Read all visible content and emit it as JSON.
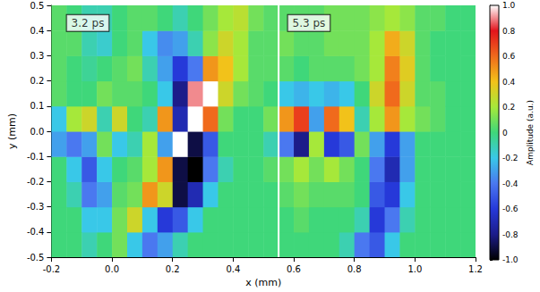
{
  "chart_data": {
    "type": "heatmap",
    "x_label": "x (mm)",
    "y_label": "y (mm)",
    "xlim": [
      -0.2,
      1.2
    ],
    "xticks": [
      -0.2,
      {
        "value": 0,
        "label": "0.0"
      },
      0.2,
      0.4,
      0.6,
      0.8,
      {
        "value": 1,
        "label": "1.0"
      },
      1.2
    ],
    "ylim": [
      -0.5,
      0.5
    ],
    "yticks": [
      -0.5,
      -0.4,
      -0.3,
      -0.2,
      -0.1,
      {
        "value": 0,
        "label": "0.0"
      },
      0.1,
      0.2,
      0.3,
      0.4,
      0.5
    ],
    "panel_boundary": 0.55,
    "annotations": [
      {
        "text": "3.2 ps",
        "x": -0.08,
        "y": 0.43
      },
      {
        "text": "5.3 ps",
        "x": 0.65,
        "y": 0.43
      }
    ],
    "x": [
      -0.175,
      -0.125,
      -0.075,
      -0.025,
      0.025,
      0.075,
      0.125,
      0.175,
      0.225,
      0.275,
      0.325,
      0.375,
      0.425,
      0.475,
      0.525,
      0.575,
      0.625,
      0.675,
      0.725,
      0.775,
      0.825,
      0.875,
      0.925,
      0.975,
      1.025,
      1.075,
      1.125,
      1.175
    ],
    "y": [
      -0.45,
      -0.35,
      -0.25,
      -0.15,
      -0.05,
      0.05,
      0.15,
      0.25,
      0.35,
      0.45
    ],
    "values": [
      [
        0.0,
        0.0,
        -0.1,
        0.0,
        0.1,
        -0.2,
        -0.4,
        -0.3,
        -0.1,
        0.0,
        0.0,
        0.0,
        0.0,
        0.0,
        0.0,
        0.0,
        0.0,
        0.0,
        0.0,
        -0.1,
        -0.4,
        -0.5,
        -0.2,
        0.0,
        0.0,
        0.0,
        0.0,
        0.0
      ],
      [
        0.0,
        0.0,
        -0.2,
        -0.2,
        0.1,
        0.3,
        -0.2,
        -0.6,
        -0.5,
        -0.2,
        0.0,
        0.0,
        0.0,
        0.0,
        0.0,
        0.0,
        0.05,
        0.0,
        0.0,
        0.0,
        -0.1,
        -0.6,
        -0.4,
        -0.1,
        0.0,
        0.0,
        0.0,
        0.0
      ],
      [
        0.0,
        -0.1,
        -0.4,
        -0.3,
        0.05,
        0.1,
        0.5,
        0.3,
        -0.9,
        -0.7,
        -0.2,
        0.0,
        0.0,
        0.0,
        0.0,
        0.05,
        0.1,
        0.05,
        0.05,
        0.05,
        0.0,
        -0.5,
        -0.6,
        -0.2,
        0.0,
        0.0,
        0.0,
        0.0
      ],
      [
        0.0,
        -0.2,
        -0.5,
        -0.2,
        0.0,
        0.05,
        0.2,
        0.5,
        -0.9,
        -1.0,
        -0.4,
        -0.1,
        0.0,
        0.0,
        0.05,
        0.1,
        0.2,
        0.1,
        0.2,
        0.1,
        0.0,
        -0.4,
        -0.7,
        -0.3,
        0.0,
        0.0,
        0.0,
        0.0
      ],
      [
        -0.3,
        -0.4,
        -0.3,
        0.1,
        -0.2,
        -0.1,
        0.2,
        -0.3,
        1.0,
        -0.9,
        -0.5,
        0.0,
        0.0,
        0.0,
        -0.1,
        -0.4,
        -0.8,
        0.2,
        -0.6,
        -0.5,
        0.1,
        -0.3,
        -0.6,
        -0.3,
        0.0,
        0.0,
        0.0,
        0.0
      ],
      [
        -0.2,
        0.2,
        0.3,
        -0.1,
        0.3,
        0.0,
        -0.1,
        0.5,
        -0.7,
        1.0,
        0.6,
        0.1,
        0.0,
        0.0,
        0.1,
        0.5,
        0.7,
        -0.3,
        0.6,
        0.4,
        -0.1,
        0.2,
        0.5,
        0.2,
        0.1,
        0.05,
        0.0,
        0.0
      ],
      [
        0.05,
        0.0,
        0.0,
        0.1,
        0.05,
        0.05,
        0.0,
        -0.2,
        -0.8,
        0.9,
        1.0,
        0.3,
        0.1,
        0.05,
        0.0,
        -0.2,
        -0.25,
        -0.2,
        -0.25,
        -0.2,
        0.0,
        0.3,
        0.6,
        0.3,
        0.05,
        0.05,
        0.0,
        0.0
      ],
      [
        0.05,
        0.0,
        -0.05,
        0.0,
        0.05,
        0.1,
        -0.1,
        -0.3,
        -0.6,
        -0.4,
        0.5,
        0.4,
        0.2,
        0.05,
        0.05,
        0.05,
        0.0,
        0.05,
        0.05,
        0.05,
        0.1,
        0.2,
        0.55,
        0.35,
        0.05,
        0.0,
        0.0,
        0.0
      ],
      [
        0.05,
        0.05,
        -0.1,
        -0.15,
        0.0,
        0.05,
        -0.2,
        -0.35,
        -0.3,
        -0.1,
        0.15,
        0.3,
        0.2,
        0.05,
        0.05,
        0.1,
        0.05,
        0.05,
        0.1,
        0.1,
        0.1,
        0.2,
        0.45,
        0.3,
        0.05,
        0.0,
        0.0,
        0.0
      ],
      [
        0.05,
        0.0,
        -0.1,
        -0.1,
        0.0,
        0.05,
        0.05,
        0.0,
        -0.1,
        0.0,
        0.1,
        0.2,
        0.25,
        0.1,
        0.05,
        0.05,
        0.05,
        0.05,
        0.1,
        0.1,
        0.1,
        0.15,
        0.2,
        0.15,
        0.05,
        0.05,
        0.0,
        0.0
      ]
    ],
    "colorbar": {
      "label": "Amplitude (a.u.)",
      "range": [
        -1,
        1
      ],
      "ticks": [
        {
          "value": -1,
          "label": "-1.0"
        },
        -0.8,
        -0.6,
        -0.4,
        -0.2,
        0,
        0.2,
        0.4,
        0.6,
        0.8,
        {
          "value": 1,
          "label": "1.0"
        }
      ],
      "colors": [
        "#000000",
        "#1c1c8a",
        "#2639d9",
        "#4a78f0",
        "#39c8e8",
        "#3fd77a",
        "#a6e83a",
        "#f2c21a",
        "#f06a1c",
        "#e3141c",
        "#ffffff"
      ]
    }
  }
}
